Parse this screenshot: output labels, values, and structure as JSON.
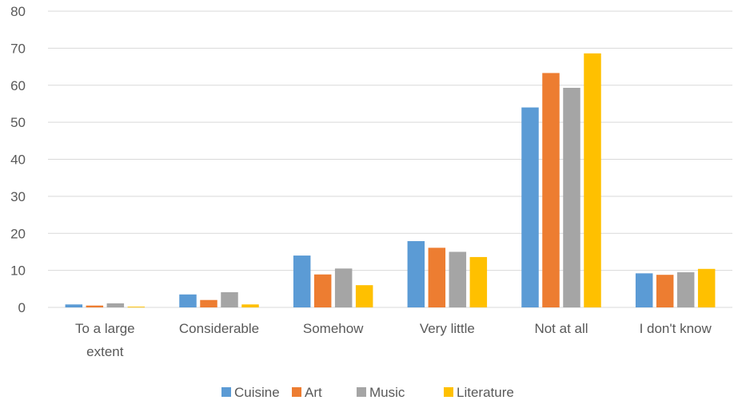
{
  "chart_data": {
    "type": "bar",
    "categories": [
      "To a large extent",
      "Considerable",
      "Somehow",
      "Very little",
      "Not at all",
      "I don't know"
    ],
    "category_lines": [
      [
        "To a large",
        "extent"
      ],
      [
        "Considerable"
      ],
      [
        "Somehow"
      ],
      [
        "Very little"
      ],
      [
        "Not at all"
      ],
      [
        "I don't know"
      ]
    ],
    "series": [
      {
        "name": "Cuisine",
        "color": "#5B9BD5",
        "values": [
          0.8,
          3.5,
          14.0,
          17.9,
          54.0,
          9.2
        ]
      },
      {
        "name": "Art",
        "color": "#ED7D31",
        "values": [
          0.5,
          2.0,
          8.9,
          16.1,
          63.3,
          8.8
        ]
      },
      {
        "name": "Music",
        "color": "#A5A5A5",
        "values": [
          1.1,
          4.1,
          10.5,
          15.0,
          59.3,
          9.5
        ]
      },
      {
        "name": "Literature",
        "color": "#FFC000",
        "values": [
          0.2,
          0.8,
          6.0,
          13.6,
          68.6,
          10.4
        ]
      }
    ],
    "ylim": [
      0,
      80
    ],
    "yticks": [
      "0",
      "10",
      "20",
      "30",
      "40",
      "50",
      "60",
      "70",
      "80"
    ],
    "grid": true,
    "legend": "bottom",
    "title": "",
    "xlabel": "",
    "ylabel": ""
  }
}
